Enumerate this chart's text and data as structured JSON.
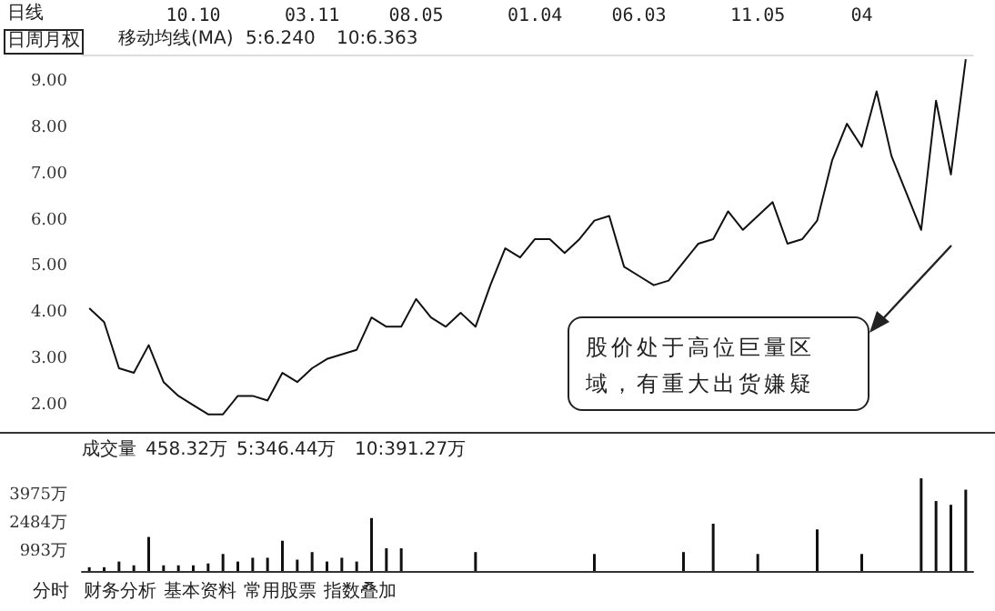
{
  "chart_data": [
    {
      "type": "line",
      "title": "日线",
      "color": "#111111",
      "categories": [
        null,
        null,
        null,
        null,
        null,
        null,
        null,
        "10.10",
        null,
        null,
        null,
        null,
        null,
        null,
        null,
        "03.11",
        null,
        null,
        null,
        null,
        null,
        null,
        "08.05",
        null,
        null,
        null,
        null,
        null,
        null,
        null,
        "01.04",
        null,
        null,
        null,
        null,
        null,
        null,
        "06.03",
        null,
        null,
        null,
        null,
        null,
        null,
        null,
        "11.05",
        null,
        null,
        null,
        null,
        null,
        null,
        "04",
        null,
        null,
        null,
        null,
        null,
        null,
        null
      ],
      "values": [
        4.1,
        3.8,
        2.8,
        2.7,
        3.3,
        2.5,
        2.2,
        2.0,
        1.8,
        1.8,
        2.2,
        2.2,
        2.1,
        2.7,
        2.5,
        2.8,
        3.0,
        3.1,
        3.2,
        3.9,
        3.7,
        3.7,
        4.3,
        3.9,
        3.7,
        4.0,
        3.7,
        4.6,
        5.4,
        5.2,
        5.6,
        5.6,
        5.3,
        5.6,
        6.0,
        6.1,
        5.0,
        4.8,
        4.6,
        4.7,
        5.1,
        5.5,
        5.6,
        6.2,
        5.8,
        6.1,
        6.4,
        5.5,
        5.6,
        6.0,
        7.3,
        8.1,
        7.6,
        8.8,
        7.4,
        6.6,
        5.8,
        8.6,
        7.0,
        9.5
      ],
      "ylim": [
        1.4,
        9.6
      ],
      "yticks": [
        {
          "value": 2,
          "label": "2.00"
        },
        {
          "value": 3,
          "label": "3.00"
        },
        {
          "value": 4,
          "label": "4.00"
        },
        {
          "value": 5,
          "label": "5.00"
        },
        {
          "value": 6,
          "label": "6.00"
        },
        {
          "value": 7,
          "label": "7.00"
        },
        {
          "value": 8,
          "label": "8.00"
        },
        {
          "value": 9,
          "label": "9.00"
        }
      ],
      "grid": false,
      "annotations": [
        "日周月权",
        "移动均线(MA)",
        "5:6.240",
        "10:6.363",
        "股价处于高位巨量区域，有重大出货嫌疑"
      ]
    },
    {
      "type": "bar",
      "title": "成交量",
      "color": "#111111",
      "categories": [
        null,
        null,
        null,
        null,
        null,
        null,
        null,
        null,
        null,
        null,
        null,
        null,
        null,
        null,
        null,
        null,
        null,
        null,
        null,
        null,
        null,
        null,
        null,
        null,
        null,
        null,
        null,
        null,
        null,
        null,
        null,
        null,
        null,
        null,
        null,
        null,
        null,
        null,
        null,
        null,
        null,
        null,
        null,
        null,
        null,
        null,
        null,
        null,
        null,
        null,
        null,
        null,
        null,
        null,
        null,
        null,
        null,
        null,
        null,
        null
      ],
      "values": [
        200,
        200,
        500,
        300,
        1800,
        300,
        300,
        300,
        400,
        900,
        500,
        700,
        700,
        1600,
        600,
        1000,
        500,
        700,
        500,
        2800,
        1200,
        1200,
        null,
        null,
        null,
        null,
        1000,
        null,
        null,
        null,
        null,
        null,
        null,
        null,
        900,
        null,
        null,
        null,
        null,
        null,
        1000,
        null,
        2500,
        null,
        null,
        900,
        null,
        null,
        null,
        2200,
        null,
        null,
        900,
        null,
        null,
        null,
        4900,
        3700,
        3500,
        4300
      ],
      "ylim": [
        0,
        5000
      ],
      "yticks": [
        {
          "value": 993,
          "label": "993万"
        },
        {
          "value": 2484,
          "label": "2484万"
        },
        {
          "value": 3975,
          "label": "3975万"
        }
      ],
      "tick_labels": "y",
      "grid": false,
      "annotations": [
        "458.32万",
        "5:346.44万",
        "10:391.27万",
        "分时",
        "财务分析",
        "基本资料",
        "常用股票",
        "指数叠加"
      ]
    }
  ]
}
